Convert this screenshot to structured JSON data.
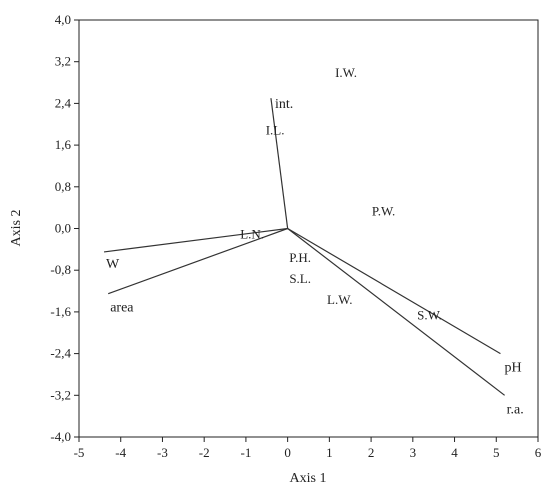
{
  "chart_data": {
    "type": "scatter",
    "title": "",
    "xlabel": "Axis 1",
    "ylabel": "Axis 2",
    "xlim": [
      -5,
      6
    ],
    "ylim": [
      -4.0,
      4.0
    ],
    "x_ticks": [
      "-5",
      "-4",
      "-3",
      "-2",
      "-1",
      "0",
      "1",
      "2",
      "3",
      "4",
      "5",
      "6"
    ],
    "y_ticks": [
      "4,0",
      "3,2",
      "2,4",
      "1,6",
      "0,8",
      "0,0",
      "-0,8",
      "-1,6",
      "-2,4",
      "-3,2",
      "-4,0"
    ],
    "grid": false,
    "points": [
      {
        "label": "I.W.",
        "x": 1.4,
        "y": 3.0
      },
      {
        "label": "I.L.",
        "x": -0.3,
        "y": 1.9
      },
      {
        "label": "P.W.",
        "x": 2.3,
        "y": 0.35
      },
      {
        "label": "L.N.",
        "x": -0.85,
        "y": -0.1
      },
      {
        "label": "P.H.",
        "x": 0.3,
        "y": -0.55
      },
      {
        "label": "S.L.",
        "x": 0.3,
        "y": -0.95
      },
      {
        "label": "L.W.",
        "x": 1.25,
        "y": -1.35
      },
      {
        "label": "S.W.",
        "x": 3.4,
        "y": -1.65
      }
    ],
    "vectors": [
      {
        "label": "int.",
        "x": -0.4,
        "y": 2.5
      },
      {
        "label": "W",
        "x": -4.4,
        "y": -0.45
      },
      {
        "label": "area",
        "x": -4.3,
        "y": -1.25
      },
      {
        "label": "pH",
        "x": 5.1,
        "y": -2.4
      },
      {
        "label": "r.a.",
        "x": 5.2,
        "y": -3.2
      }
    ]
  }
}
